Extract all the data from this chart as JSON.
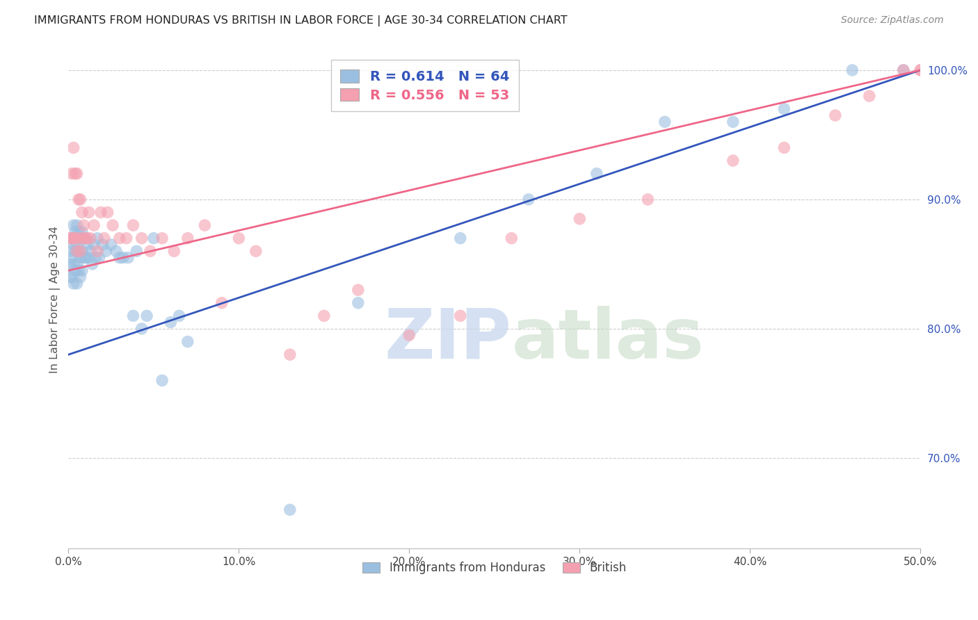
{
  "title": "IMMIGRANTS FROM HONDURAS VS BRITISH IN LABOR FORCE | AGE 30-34 CORRELATION CHART",
  "source": "Source: ZipAtlas.com",
  "ylabel": "In Labor Force | Age 30-34",
  "xlim": [
    0.0,
    0.5
  ],
  "ylim": [
    0.63,
    1.015
  ],
  "xticks": [
    0.0,
    0.1,
    0.2,
    0.3,
    0.4,
    0.5
  ],
  "xticklabels": [
    "0.0%",
    "10.0%",
    "20.0%",
    "30.0%",
    "40.0%",
    "50.0%"
  ],
  "yticks": [
    0.7,
    0.8,
    0.9,
    1.0
  ],
  "yticklabels": [
    "70.0%",
    "80.0%",
    "90.0%",
    "100.0%"
  ],
  "blue_R": 0.614,
  "blue_N": 64,
  "pink_R": 0.556,
  "pink_N": 53,
  "blue_color": "#9BBFE0",
  "pink_color": "#F4A0B0",
  "blue_line_color": "#3355BB",
  "pink_line_color": "#EE6688",
  "watermark_zip": "ZIP",
  "watermark_atlas": "atlas",
  "legend_label_blue": "Immigrants from Honduras",
  "legend_label_pink": "British",
  "blue_line_x0": 0.0,
  "blue_line_y0": 0.78,
  "blue_line_x1": 0.5,
  "blue_line_y1": 1.0,
  "pink_line_x0": 0.0,
  "pink_line_y0": 0.845,
  "pink_line_x1": 0.5,
  "pink_line_y1": 1.0,
  "blue_x": [
    0.001,
    0.001,
    0.001,
    0.002,
    0.002,
    0.002,
    0.003,
    0.003,
    0.003,
    0.003,
    0.004,
    0.004,
    0.004,
    0.005,
    0.005,
    0.005,
    0.005,
    0.006,
    0.006,
    0.006,
    0.007,
    0.007,
    0.007,
    0.008,
    0.008,
    0.008,
    0.009,
    0.009,
    0.01,
    0.01,
    0.011,
    0.012,
    0.013,
    0.014,
    0.015,
    0.016,
    0.017,
    0.018,
    0.02,
    0.022,
    0.025,
    0.028,
    0.03,
    0.032,
    0.035,
    0.038,
    0.04,
    0.043,
    0.046,
    0.05,
    0.055,
    0.06,
    0.065,
    0.07,
    0.13,
    0.17,
    0.23,
    0.27,
    0.31,
    0.35,
    0.39,
    0.42,
    0.46,
    0.49
  ],
  "blue_y": [
    0.86,
    0.85,
    0.84,
    0.87,
    0.855,
    0.84,
    0.88,
    0.865,
    0.85,
    0.835,
    0.875,
    0.86,
    0.845,
    0.88,
    0.865,
    0.85,
    0.835,
    0.875,
    0.86,
    0.845,
    0.87,
    0.855,
    0.84,
    0.875,
    0.86,
    0.845,
    0.87,
    0.855,
    0.87,
    0.855,
    0.865,
    0.855,
    0.86,
    0.85,
    0.865,
    0.855,
    0.87,
    0.855,
    0.865,
    0.86,
    0.865,
    0.86,
    0.855,
    0.855,
    0.855,
    0.81,
    0.86,
    0.8,
    0.81,
    0.87,
    0.76,
    0.805,
    0.81,
    0.79,
    0.66,
    0.82,
    0.87,
    0.9,
    0.92,
    0.96,
    0.96,
    0.97,
    1.0,
    1.0
  ],
  "pink_x": [
    0.001,
    0.002,
    0.002,
    0.003,
    0.003,
    0.004,
    0.004,
    0.005,
    0.005,
    0.006,
    0.006,
    0.007,
    0.007,
    0.008,
    0.008,
    0.009,
    0.01,
    0.011,
    0.012,
    0.013,
    0.015,
    0.017,
    0.019,
    0.021,
    0.023,
    0.026,
    0.03,
    0.034,
    0.038,
    0.043,
    0.048,
    0.055,
    0.062,
    0.07,
    0.08,
    0.09,
    0.1,
    0.11,
    0.13,
    0.15,
    0.17,
    0.2,
    0.23,
    0.26,
    0.3,
    0.34,
    0.39,
    0.42,
    0.45,
    0.47,
    0.49,
    0.5,
    0.5
  ],
  "pink_y": [
    0.87,
    0.92,
    0.87,
    0.94,
    0.87,
    0.92,
    0.87,
    0.92,
    0.86,
    0.9,
    0.87,
    0.9,
    0.86,
    0.89,
    0.87,
    0.88,
    0.87,
    0.87,
    0.89,
    0.87,
    0.88,
    0.86,
    0.89,
    0.87,
    0.89,
    0.88,
    0.87,
    0.87,
    0.88,
    0.87,
    0.86,
    0.87,
    0.86,
    0.87,
    0.88,
    0.82,
    0.87,
    0.86,
    0.78,
    0.81,
    0.83,
    0.795,
    0.81,
    0.87,
    0.885,
    0.9,
    0.93,
    0.94,
    0.965,
    0.98,
    1.0,
    1.0,
    1.0
  ]
}
